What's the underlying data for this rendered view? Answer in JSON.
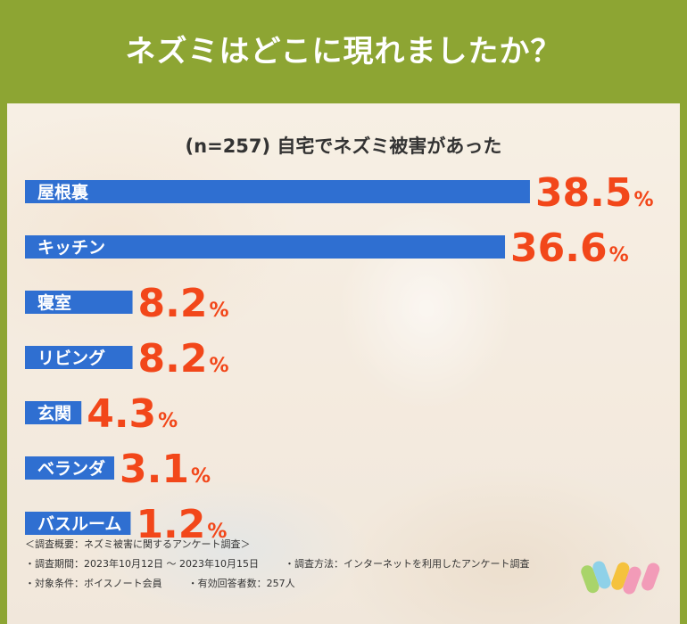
{
  "title": "ネズミはどこに現れましたか？",
  "colors": {
    "header": "#8da533",
    "bar": "#2f6fd1",
    "value": "#f2471a",
    "label": "#ffffff"
  },
  "chart_data": {
    "type": "bar",
    "orientation": "horizontal",
    "subtitle": "(n=257) 自宅でネズミ被害があった",
    "unit": "%",
    "categories": [
      "屋根裏",
      "キッチン",
      "寝室",
      "リビング",
      "玄関",
      "ベランダ",
      "バスルーム"
    ],
    "values": [
      38.5,
      36.6,
      8.2,
      8.2,
      4.3,
      3.1,
      1.2
    ],
    "value_labels": [
      "38.5",
      "36.6",
      "8.2",
      "8.2",
      "4.3",
      "3.1",
      "1.2"
    ]
  },
  "notes": {
    "overview": "＜調査概要：ネズミ被害に関するアンケート調査＞",
    "period": "・調査期間：2023年10月12日 ～ 2023年10月15日",
    "method": "・調査方法：インターネットを利用したアンケート調査",
    "target": "・対象条件：ボイスノート会員",
    "count": "・有効回答者数：257人"
  }
}
